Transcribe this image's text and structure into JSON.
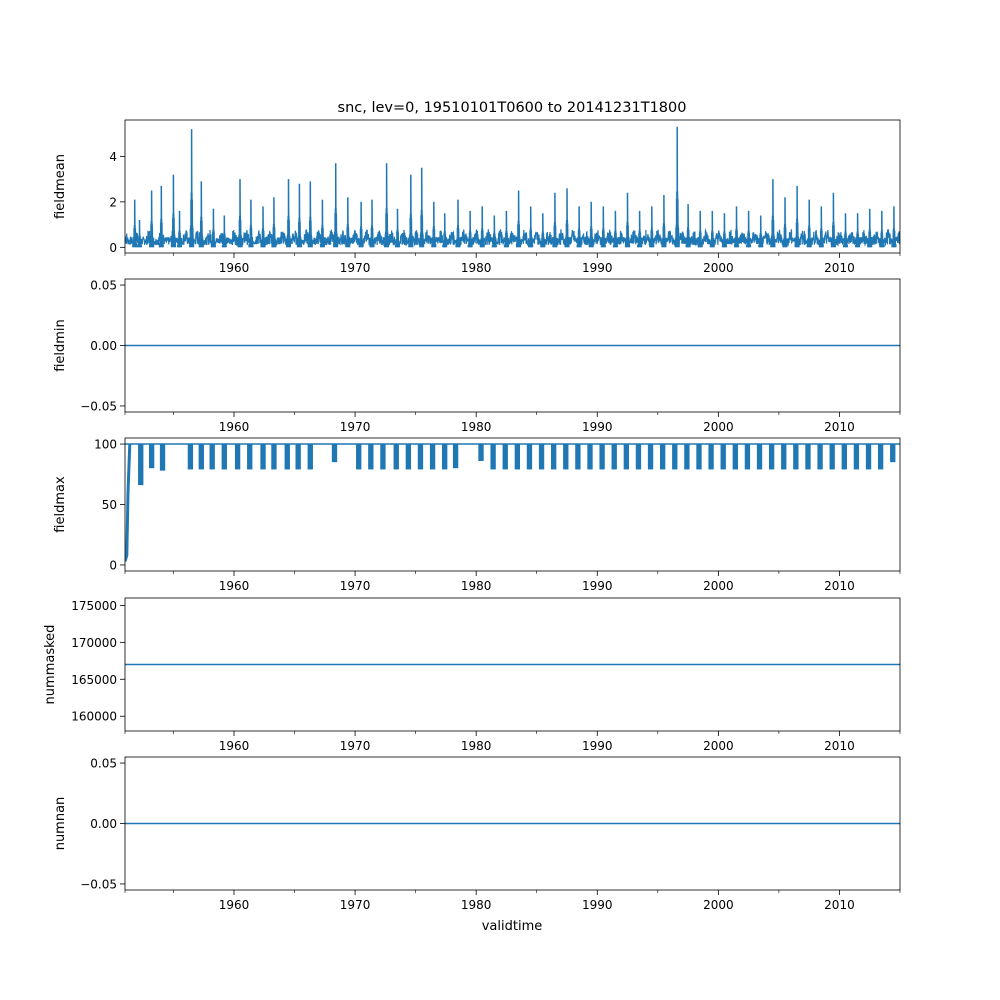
{
  "figure": {
    "title": "snc, lev=0, 19510101T0600 to 20141231T1800",
    "xlabel": "validtime",
    "line_color": "#1f77b4"
  },
  "chart_data": [
    {
      "type": "line",
      "ylabel": "fieldmean",
      "xlim": [
        1951.0,
        2015.0
      ],
      "ylim": [
        -0.25,
        5.6
      ],
      "x_ticks": [
        1960,
        1970,
        1980,
        1990,
        2000,
        2010
      ],
      "y_ticks": [
        0,
        2,
        4
      ],
      "y_tick_labels": [
        "0",
        "2",
        "4"
      ],
      "series": [
        {
          "description_values": "seasonal snow-cover mean, one peak per winter",
          "peak_years": [
            1951.8,
            1952.2,
            1953.2,
            1954.0,
            1955.0,
            1955.5,
            1956.5,
            1957.3,
            1958.3,
            1959.2,
            1960.5,
            1961.4,
            1962.4,
            1963.3,
            1964.5,
            1965.4,
            1966.3,
            1967.3,
            1968.4,
            1969.4,
            1970.5,
            1971.4,
            1972.6,
            1973.5,
            1974.6,
            1975.5,
            1976.5,
            1977.4,
            1978.5,
            1979.5,
            1980.5,
            1981.5,
            1982.5,
            1983.5,
            1984.5,
            1985.5,
            1986.5,
            1987.5,
            1988.5,
            1989.5,
            1990.5,
            1991.5,
            1992.5,
            1993.5,
            1994.5,
            1995.5,
            1996.6,
            1997.5,
            1998.5,
            1999.5,
            2000.5,
            2001.5,
            2002.5,
            2003.5,
            2004.5,
            2005.5,
            2006.5,
            2007.5,
            2008.5,
            2009.5,
            2010.5,
            2011.5,
            2012.5,
            2013.5,
            2014.5
          ],
          "peak_values": [
            2.1,
            1.2,
            2.5,
            2.7,
            3.2,
            1.6,
            5.2,
            2.9,
            1.7,
            1.4,
            3.0,
            2.1,
            1.8,
            2.2,
            3.0,
            2.8,
            2.9,
            2.1,
            3.7,
            2.2,
            2.0,
            2.1,
            3.7,
            1.7,
            3.2,
            3.5,
            2.0,
            1.5,
            2.1,
            1.6,
            1.8,
            1.4,
            1.6,
            2.5,
            1.8,
            1.5,
            2.4,
            2.6,
            1.8,
            2.0,
            1.8,
            1.6,
            2.4,
            1.6,
            1.8,
            2.3,
            5.3,
            1.9,
            1.6,
            1.6,
            1.5,
            1.8,
            1.6,
            1.4,
            3.0,
            2.2,
            2.7,
            2.1,
            1.8,
            2.4,
            1.5,
            1.5,
            1.7,
            1.6,
            1.8
          ],
          "baseline": 0.1
        }
      ]
    },
    {
      "type": "line",
      "ylabel": "fieldmin",
      "xlim": [
        1951.0,
        2015.0
      ],
      "ylim": [
        -0.055,
        0.055
      ],
      "x_ticks": [
        1960,
        1970,
        1980,
        1990,
        2000,
        2010
      ],
      "y_ticks": [
        -0.05,
        0.0,
        0.05
      ],
      "y_tick_labels": [
        "−0.05",
        "0.00",
        "0.05"
      ],
      "series": [
        {
          "x": [
            1951.0,
            2015.0
          ],
          "values": [
            0.0,
            0.0
          ]
        }
      ]
    },
    {
      "type": "line",
      "ylabel": "fieldmax",
      "xlim": [
        1951.0,
        2015.0
      ],
      "ylim": [
        -5,
        105
      ],
      "x_ticks": [
        1960,
        1970,
        1980,
        1990,
        2000,
        2010
      ],
      "y_ticks": [
        0,
        50,
        100
      ],
      "y_tick_labels": [
        "0",
        "50",
        "100"
      ],
      "series": [
        {
          "upper_value": 100,
          "dip_years": [
            1952.3,
            1953.2,
            1954.1,
            1956.4,
            1957.3,
            1958.2,
            1959.2,
            1960.3,
            1961.3,
            1962.4,
            1963.3,
            1964.4,
            1965.3,
            1966.3,
            1968.3,
            1970.3,
            1971.3,
            1972.3,
            1973.4,
            1974.4,
            1975.4,
            1976.4,
            1977.4,
            1978.3,
            1980.4,
            1981.4,
            1982.4,
            1983.4,
            1984.4,
            1985.4,
            1986.4,
            1987.4,
            1988.4,
            1989.4,
            1990.4,
            1991.4,
            1992.4,
            1993.4,
            1994.4,
            1995.4,
            1996.4,
            1997.4,
            1998.4,
            1999.4,
            2000.4,
            2001.4,
            2002.4,
            2003.4,
            2004.4,
            2005.4,
            2006.4,
            2007.4,
            2008.4,
            2009.4,
            2010.4,
            2011.4,
            2012.4,
            2013.4,
            2014.4
          ],
          "dip_values": [
            66,
            80,
            78,
            79,
            79,
            79,
            79,
            79,
            79,
            79,
            79,
            79,
            79,
            79,
            85,
            79,
            79,
            79,
            79,
            79,
            79,
            79,
            79,
            80,
            86,
            79,
            79,
            79,
            79,
            79,
            79,
            79,
            79,
            79,
            79,
            79,
            79,
            79,
            79,
            79,
            79,
            79,
            79,
            79,
            79,
            79,
            79,
            79,
            79,
            79,
            79,
            79,
            79,
            79,
            79,
            79,
            79,
            79,
            85
          ],
          "start_ramp": [
            [
              1951.0,
              3
            ],
            [
              1951.15,
              8
            ],
            [
              1951.25,
              60
            ],
            [
              1951.4,
              100
            ]
          ]
        }
      ]
    },
    {
      "type": "line",
      "ylabel": "nummasked",
      "xlim": [
        1951.0,
        2015.0
      ],
      "ylim": [
        158000,
        176000
      ],
      "x_ticks": [
        1960,
        1970,
        1980,
        1990,
        2000,
        2010
      ],
      "y_ticks": [
        160000,
        165000,
        170000,
        175000
      ],
      "y_tick_labels": [
        "160000",
        "165000",
        "170000",
        "175000"
      ],
      "series": [
        {
          "x": [
            1951.0,
            2015.0
          ],
          "values": [
            167000,
            167000
          ]
        }
      ]
    },
    {
      "type": "line",
      "ylabel": "numnan",
      "xlim": [
        1951.0,
        2015.0
      ],
      "ylim": [
        -0.055,
        0.055
      ],
      "x_ticks": [
        1960,
        1970,
        1980,
        1990,
        2000,
        2010
      ],
      "y_ticks": [
        -0.05,
        0.0,
        0.05
      ],
      "y_tick_labels": [
        "−0.05",
        "0.00",
        "0.05"
      ],
      "series": [
        {
          "x": [
            1951.0,
            2015.0
          ],
          "values": [
            0.0,
            0.0
          ]
        }
      ]
    }
  ]
}
